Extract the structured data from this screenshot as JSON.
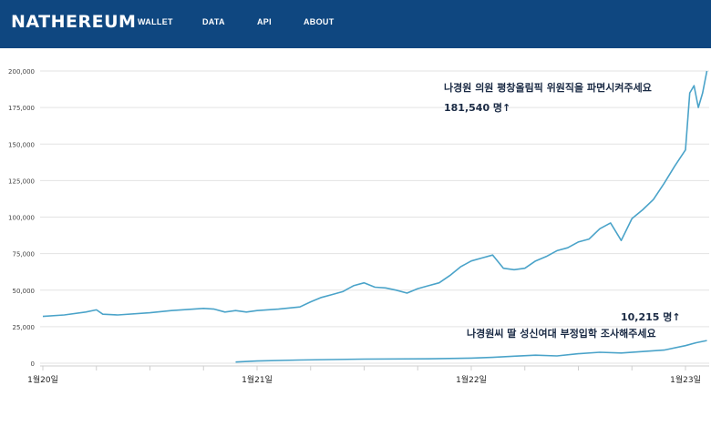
{
  "header": {
    "brand": "NATHEREUM",
    "nav": [
      "WALLET",
      "DATA",
      "API",
      "ABOUT"
    ],
    "bg_color": "#0f4780"
  },
  "chart_data": {
    "type": "line",
    "title": "",
    "xlabel": "",
    "ylabel": "",
    "x_ticks": [
      "1월20일",
      "1월21일",
      "1월22일",
      "1월23일"
    ],
    "y_ticks": [
      "0",
      "25,000",
      "50,000",
      "75,000",
      "100,000",
      "125,000",
      "150,000",
      "175,000",
      "200,000"
    ],
    "ylim": [
      0,
      200000
    ],
    "xlim": [
      0,
      3.1
    ],
    "grid": true,
    "line_color": "#4aa3c9",
    "series": [
      {
        "x": [
          0,
          0.1,
          0.2,
          0.25,
          0.28,
          0.35,
          0.5,
          0.6,
          0.75,
          0.8,
          0.85,
          0.9,
          0.95,
          1.0,
          1.1,
          1.2,
          1.25,
          1.3,
          1.35,
          1.4,
          1.45,
          1.5,
          1.55,
          1.6,
          1.65,
          1.7,
          1.75,
          1.8,
          1.85,
          1.9,
          1.95,
          2.0,
          2.05,
          2.1,
          2.15,
          2.2,
          2.25,
          2.3,
          2.35,
          2.4,
          2.45,
          2.5,
          2.55,
          2.6,
          2.65,
          2.7,
          2.75,
          2.8,
          2.85,
          2.9,
          2.95,
          3.0,
          3.02,
          3.04,
          3.06,
          3.08,
          3.1
        ],
        "values": [
          32000,
          33000,
          35000,
          36500,
          33500,
          33000,
          34500,
          36000,
          37500,
          37000,
          35000,
          36000,
          35000,
          36000,
          37000,
          38500,
          42000,
          45000,
          47000,
          49000,
          53000,
          55000,
          52000,
          51500,
          50000,
          48000,
          51000,
          53000,
          55000,
          60000,
          66000,
          70000,
          72000,
          74000,
          65000,
          64000,
          65000,
          70000,
          73000,
          77000,
          79000,
          83000,
          85000,
          92000,
          96000,
          84000,
          99000,
          105000,
          112000,
          123000,
          135000,
          146000,
          185000,
          190000,
          175000,
          185000,
          200000
        ]
      },
      {
        "x": [
          0.9,
          1.0,
          1.2,
          1.5,
          1.8,
          2.0,
          2.1,
          2.2,
          2.3,
          2.4,
          2.5,
          2.6,
          2.7,
          2.8,
          2.9,
          3.0,
          3.05,
          3.1
        ],
        "values": [
          800,
          1500,
          2200,
          2800,
          3000,
          3500,
          4000,
          4800,
          5500,
          5000,
          6500,
          7500,
          7000,
          8000,
          9000,
          12000,
          14000,
          15500
        ]
      }
    ],
    "annotations": [
      {
        "line1": "나경원 의원 평창올림픽 위원직을 파면시켜주세요",
        "line2": "181,540 명↑"
      },
      {
        "line1": "10,215 명↑",
        "line2": "나경원씨 딸 성신여대 부정입학 조사해주세요"
      }
    ]
  }
}
